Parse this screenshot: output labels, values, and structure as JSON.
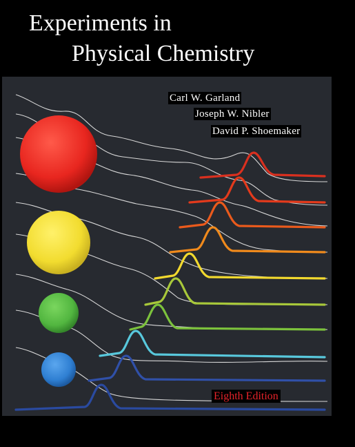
{
  "cover": {
    "title_line1": "Experiments in",
    "title_line2": "Physical Chemistry",
    "authors": [
      "Carl W. Garland",
      "Joseph W. Nibler",
      "David P. Shoemaker"
    ],
    "edition": "Eighth Edition"
  },
  "colors": {
    "background": "#000000",
    "panel": "#272a30",
    "title_text": "#ffffff",
    "edition_text": "#e8232a",
    "spheres": [
      "#e8261f",
      "#f2dc2f",
      "#52b640",
      "#2f7fd2"
    ],
    "peaks_top_to_bottom": [
      "#d9301f",
      "#e33a1c",
      "#ea5a1c",
      "#f08a1c",
      "#f2d92e",
      "#a8c83a",
      "#7cc23c",
      "#58c8dc",
      "#3050a8",
      "#2a4aa0"
    ]
  }
}
